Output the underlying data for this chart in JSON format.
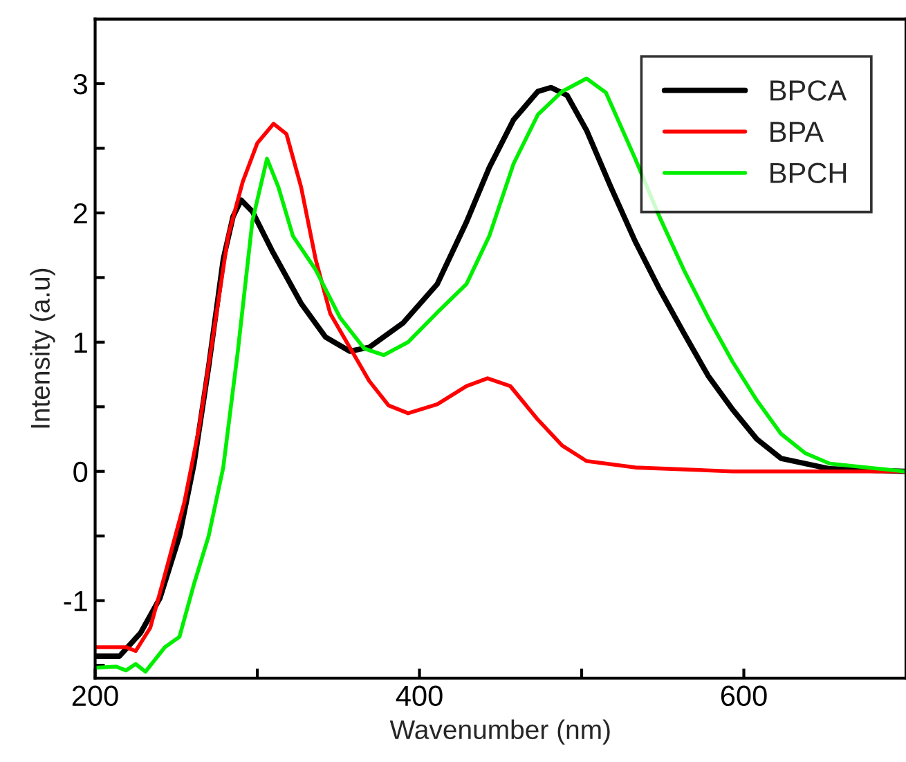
{
  "chart_data": {
    "type": "line",
    "xlabel": "Wavenumber (nm)",
    "ylabel": "Intensity (a.u)",
    "xlim": [
      200,
      700
    ],
    "ylim": [
      -1.6,
      3.5
    ],
    "xticks": [
      200,
      {
        "value": 300,
        "label": null
      },
      400,
      {
        "value": 500,
        "label": null
      },
      600
    ],
    "yticks": [
      {
        "value": -1.5,
        "label": null
      },
      -1,
      {
        "value": -0.5,
        "label": null
      },
      0,
      {
        "value": 0.5,
        "label": null
      },
      1,
      {
        "value": 1.5,
        "label": null
      },
      2,
      {
        "value": 2.5,
        "label": null
      },
      3
    ],
    "grid": false,
    "legend": "top right",
    "marker": "none",
    "line_style": "solid",
    "series": [
      {
        "name": "BPCA",
        "color": "#000000",
        "x": [
          200,
          215,
          228,
          240,
          252,
          261,
          270,
          279,
          285,
          290,
          297,
          309,
          327,
          342,
          357,
          369,
          390,
          411,
          429,
          443,
          458,
          473,
          481,
          491,
          503,
          518,
          533,
          548,
          563,
          578,
          593,
          608,
          623,
          653,
          699
        ],
        "values": [
          -1.43,
          -1.43,
          -1.25,
          -0.98,
          -0.5,
          0.06,
          0.81,
          1.64,
          1.97,
          2.1,
          2.01,
          1.71,
          1.3,
          1.04,
          0.93,
          0.96,
          1.15,
          1.45,
          1.93,
          2.35,
          2.72,
          2.94,
          2.97,
          2.91,
          2.64,
          2.2,
          1.78,
          1.41,
          1.07,
          0.74,
          0.48,
          0.25,
          0.1,
          0.02,
          0
        ]
      },
      {
        "name": "BPA",
        "color": "#ff0000",
        "x": [
          200,
          219,
          225,
          234,
          243,
          255,
          264,
          273,
          282,
          291,
          300,
          310,
          318,
          327,
          336,
          345,
          357,
          369,
          381,
          393,
          411,
          429,
          442,
          456,
          473,
          488,
          503,
          533,
          593,
          699
        ],
        "values": [
          -1.36,
          -1.36,
          -1.39,
          -1.21,
          -0.8,
          -0.24,
          0.33,
          1.07,
          1.82,
          2.24,
          2.54,
          2.69,
          2.61,
          2.2,
          1.64,
          1.22,
          0.96,
          0.7,
          0.51,
          0.45,
          0.52,
          0.66,
          0.72,
          0.66,
          0.4,
          0.2,
          0.08,
          0.03,
          0,
          0
        ]
      },
      {
        "name": "BPCH",
        "color": "#00ee00",
        "x": [
          200,
          213,
          219,
          225,
          231,
          243,
          252,
          261,
          270,
          279,
          288,
          297,
          306,
          313,
          322,
          336,
          351,
          366,
          378,
          393,
          411,
          429,
          443,
          458,
          473,
          488,
          503,
          515,
          533,
          548,
          563,
          578,
          593,
          608,
          623,
          638,
          653,
          699
        ],
        "values": [
          -1.52,
          -1.51,
          -1.54,
          -1.49,
          -1.55,
          -1.36,
          -1.28,
          -0.87,
          -0.5,
          0.03,
          0.93,
          1.94,
          2.42,
          2.2,
          1.82,
          1.56,
          1.19,
          0.95,
          0.9,
          1.0,
          1.23,
          1.45,
          1.82,
          2.38,
          2.76,
          2.94,
          3.04,
          2.93,
          2.42,
          1.97,
          1.56,
          1.19,
          0.85,
          0.55,
          0.29,
          0.14,
          0.06,
          0
        ]
      }
    ]
  }
}
